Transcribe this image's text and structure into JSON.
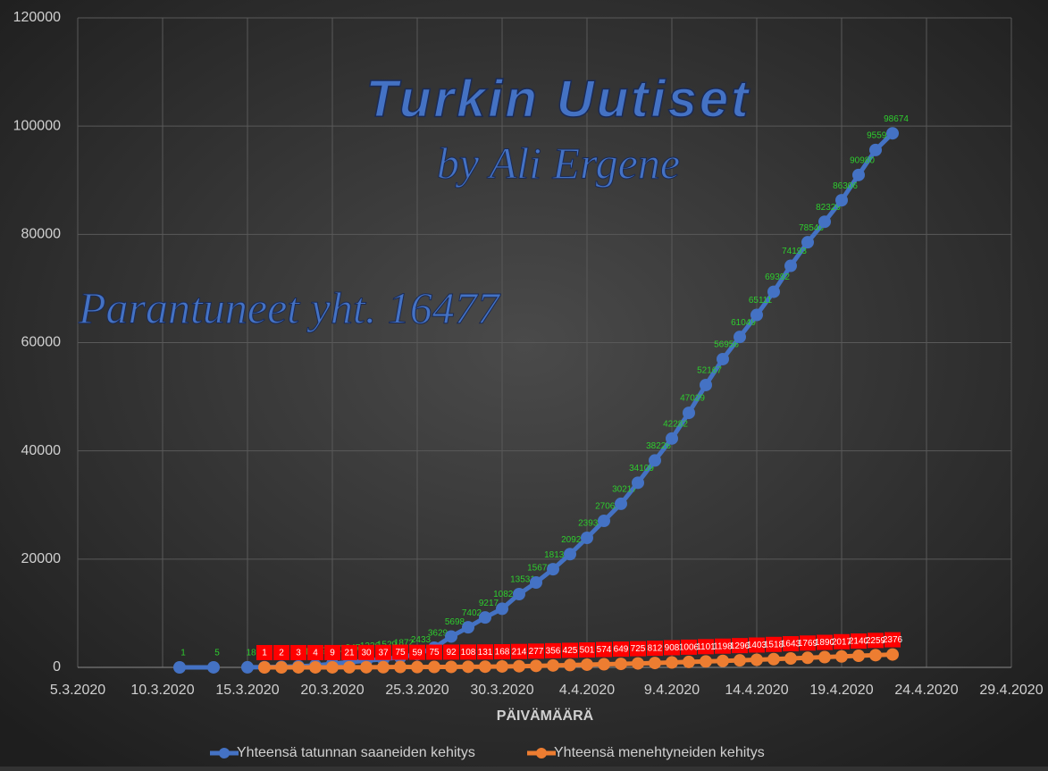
{
  "chart_data": {
    "type": "line",
    "title": "Turkin Uutiset",
    "subtitle": "by Ali Ergene",
    "annotation": "Parantuneet yht. 16477",
    "x_label": "PÄIVÄMÄÄRÄ",
    "x": [
      "11.3.2020",
      "13.3.2020",
      "14.3.2020",
      "15.3.2020",
      "16.3.2020",
      "17.3.2020",
      "18.3.2020",
      "19.3.2020",
      "20.3.2020",
      "21.3.2020",
      "22.3.2020",
      "23.3.2020",
      "24.3.2020",
      "25.3.2020",
      "26.3.2020",
      "27.3.2020",
      "28.3.2020",
      "29.3.2020",
      "30.3.2020",
      "31.3.2020",
      "1.4.2020",
      "2.4.2020",
      "3.4.2020",
      "4.4.2020",
      "5.4.2020",
      "6.4.2020",
      "7.4.2020",
      "8.4.2020",
      "9.4.2020",
      "10.4.2020",
      "11.4.2020",
      "12.4.2020",
      "13.4.2020",
      "14.4.2020",
      "15.4.2020",
      "16.4.2020",
      "17.4.2020",
      "18.4.2020",
      "19.4.2020",
      "20.4.2020",
      "21.4.2020",
      "22.4.2020"
    ],
    "series": [
      {
        "name": "Yhteensä tatunnan saaneiden kehitys",
        "color": "#4472c4",
        "label_color": "#2ecc2e",
        "values": [
          1,
          5,
          null,
          18,
          47,
          98,
          191,
          359,
          670,
          947,
          1236,
          1529,
          1872,
          2433,
          3629,
          5698,
          7402,
          9217,
          10827,
          13531,
          15679,
          18135,
          20921,
          23934,
          27069,
          30217,
          34109,
          38226,
          42282,
          47029,
          52167,
          56956,
          61049,
          65111,
          69392,
          74193,
          78546,
          82329,
          86306,
          90980,
          95591,
          98674
        ]
      },
      {
        "name": "Yhteensä menehtyneiden kehitys",
        "color": "#ed7d31",
        "label_color": "#ff0000",
        "values": [
          null,
          null,
          null,
          null,
          1,
          2,
          3,
          4,
          9,
          21,
          30,
          37,
          75,
          59,
          75,
          92,
          108,
          131,
          168,
          214,
          277,
          356,
          425,
          501,
          574,
          649,
          725,
          812,
          908,
          1006,
          1101,
          1198,
          1296,
          1403,
          1518,
          1643,
          1769,
          1890,
          2017,
          2140,
          2259,
          2376
        ]
      }
    ],
    "xlim": [
      "5.3.2020",
      "29.4.2020"
    ],
    "xticks": [
      "5.3.2020",
      "10.3.2020",
      "15.3.2020",
      "20.3.2020",
      "25.3.2020",
      "30.3.2020",
      "4.4.2020",
      "9.4.2020",
      "14.4.2020",
      "19.4.2020",
      "24.4.2020",
      "29.4.2020"
    ],
    "ylim": [
      0,
      120000
    ],
    "yticks": [
      0,
      20000,
      40000,
      60000,
      80000,
      100000,
      120000
    ],
    "grid": true
  }
}
